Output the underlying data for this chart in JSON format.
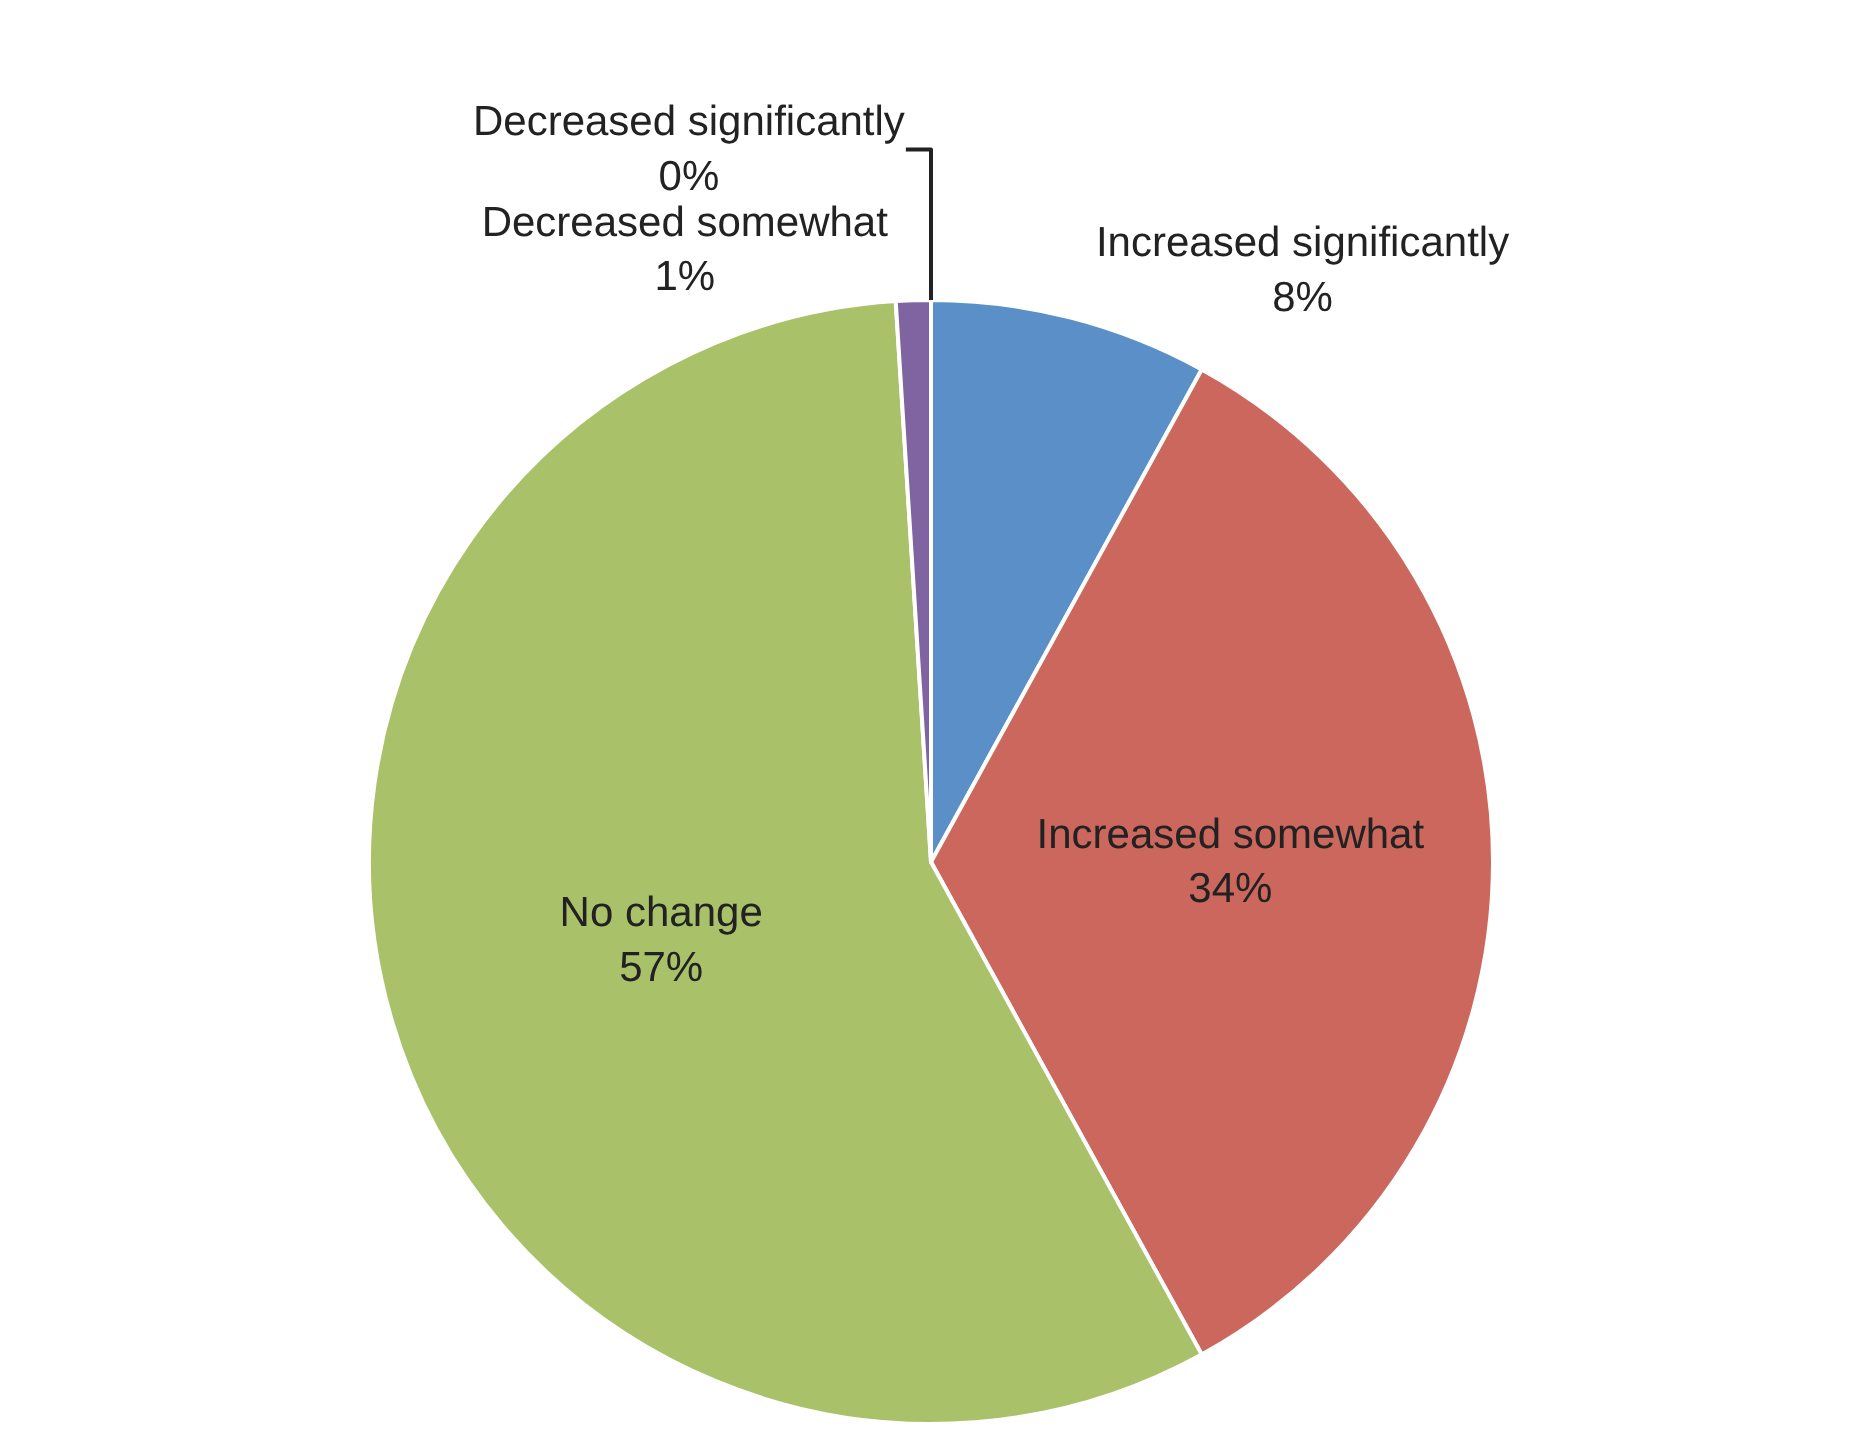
{
  "chart_data": {
    "type": "pie",
    "categories": [
      "Increased significantly",
      "Increased somewhat",
      "No change",
      "Decreased somewhat",
      "Decreased significantly"
    ],
    "values": [
      8,
      34,
      57,
      1,
      0
    ],
    "value_labels": [
      "8%",
      "34%",
      "57%",
      "1%",
      "0%"
    ],
    "colors": [
      "#5b8fc7",
      "#cb675c",
      "#a9c26a",
      "#8064a2",
      "#4bacc6"
    ],
    "legend": false
  }
}
